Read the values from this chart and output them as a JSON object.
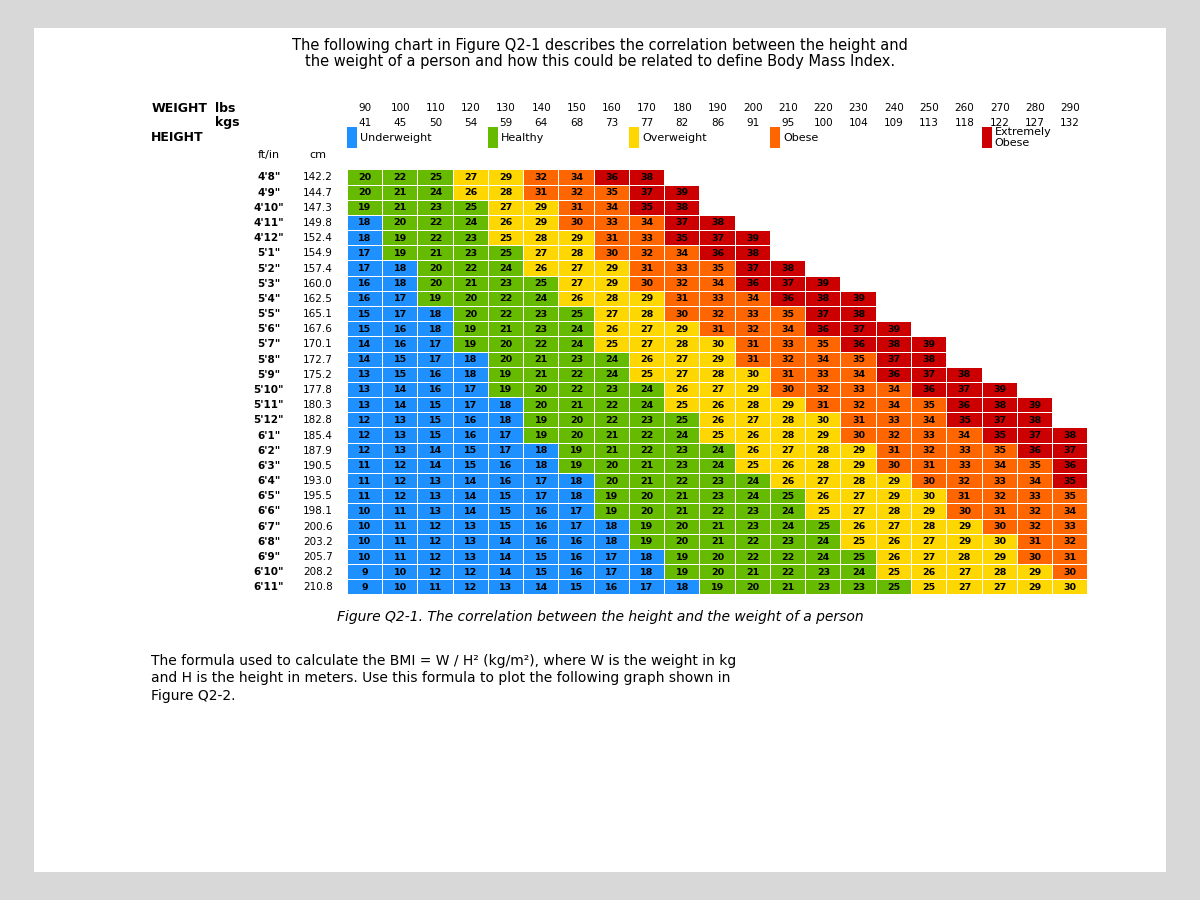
{
  "title_line1": "The following chart in Figure Q2-1 describes the correlation between the height and",
  "title_line2": "the weight of a person and how this could be related to define Body Mass Index.",
  "weight_lbs": [
    90,
    100,
    110,
    120,
    130,
    140,
    150,
    160,
    170,
    180,
    190,
    200,
    210,
    220,
    230,
    240,
    250,
    260,
    270,
    280,
    290
  ],
  "weight_kgs": [
    41,
    45,
    50,
    54,
    59,
    64,
    68,
    73,
    77,
    82,
    86,
    91,
    95,
    100,
    104,
    109,
    113,
    118,
    122,
    127,
    132
  ],
  "heights_ftin": [
    "4'8\"",
    "4'9\"",
    "4'10\"",
    "4'11\"",
    "4'12\"",
    "5'1\"",
    "5'2\"",
    "5'3\"",
    "5'4\"",
    "5'5\"",
    "5'6\"",
    "5'7\"",
    "5'8\"",
    "5'9\"",
    "5'10\"",
    "5'11\"",
    "5'12\"",
    "6'1\"",
    "6'2\"",
    "6'3\"",
    "6'4\"",
    "6'5\"",
    "6'6\"",
    "6'7\"",
    "6'8\"",
    "6'9\"",
    "6'10\"",
    "6'11\""
  ],
  "heights_cm": [
    142.2,
    144.7,
    147.3,
    149.8,
    152.4,
    154.9,
    157.4,
    160.0,
    162.5,
    165.1,
    167.6,
    170.1,
    172.7,
    175.2,
    177.8,
    180.3,
    182.8,
    185.4,
    187.9,
    190.5,
    193.0,
    195.5,
    198.1,
    200.6,
    203.2,
    205.7,
    208.2,
    210.8
  ],
  "color_underweight": "#1E90FF",
  "color_healthy": "#66BB00",
  "color_overweight": "#FFD700",
  "color_obese": "#FF6600",
  "color_extremely_obese": "#CC0000",
  "bmi_max_display": 39.5,
  "figure_caption": "Figure Q2-1. The correlation between the height and the weight of a person",
  "formula_line1": "The formula used to calculate the BMI = W / H² (kg/m²), where W is the weight in kg",
  "formula_line2": "and H is the height in meters. Use this formula to plot the following graph shown in",
  "formula_line3": "Figure Q2-2.",
  "bg_color": "#f0f0f0",
  "page_bg": "#e8e8e8"
}
